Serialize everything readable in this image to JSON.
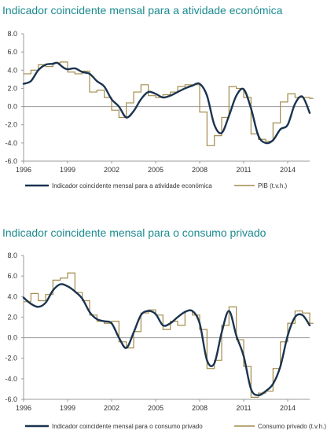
{
  "colors": {
    "title": "#1b8a8f",
    "indicator": "#1a3350",
    "reference": "#a38c4c",
    "axis": "#999999"
  },
  "chart_data": [
    {
      "type": "line",
      "title": "Indicador coincidente mensal para a atividade económica",
      "xlabel": "",
      "ylabel": "",
      "xlim": [
        1996,
        2015.5
      ],
      "ylim": [
        -6.0,
        8.0
      ],
      "yticks": [
        "8.0",
        "6.0",
        "4.0",
        "2.0",
        "0.0",
        "-2.0",
        "-4.0",
        "-6.0"
      ],
      "xticks": [
        "1996",
        "1999",
        "2002",
        "2005",
        "2008",
        "2011",
        "2014"
      ],
      "legend_position": "bottom",
      "series": [
        {
          "name": "Indicador coincidente mensal para a atividade económica",
          "style": "smooth",
          "x": [
            1996.0,
            1996.5,
            1997.0,
            1997.5,
            1998.0,
            1998.3,
            1998.7,
            1999.0,
            1999.5,
            2000.0,
            2000.5,
            2001.0,
            2001.5,
            2002.0,
            2002.5,
            2003.0,
            2003.5,
            2004.0,
            2004.5,
            2005.0,
            2005.5,
            2006.0,
            2006.5,
            2007.0,
            2007.5,
            2008.0,
            2008.5,
            2009.0,
            2009.5,
            2010.0,
            2010.5,
            2011.0,
            2011.5,
            2012.0,
            2012.5,
            2013.0,
            2013.5,
            2014.0,
            2014.5,
            2015.0,
            2015.5
          ],
          "y": [
            2.5,
            2.8,
            4.0,
            4.6,
            4.7,
            4.8,
            4.3,
            4.1,
            4.2,
            3.8,
            3.6,
            2.8,
            2.2,
            0.8,
            0.0,
            -1.2,
            -0.5,
            0.8,
            1.6,
            1.4,
            1.0,
            1.2,
            1.6,
            2.0,
            2.3,
            2.5,
            1.2,
            -2.0,
            -2.9,
            -1.0,
            1.2,
            1.9,
            -0.2,
            -3.2,
            -4.0,
            -3.7,
            -2.5,
            -2.0,
            0.3,
            1.1,
            -0.7
          ]
        },
        {
          "name": "PIB (t.v.h.)",
          "style": "step",
          "x": [
            1996.0,
            1996.5,
            1997.0,
            1997.5,
            1998.0,
            1998.5,
            1999.0,
            1999.5,
            2000.0,
            2000.5,
            2001.0,
            2001.5,
            2002.0,
            2002.5,
            2003.0,
            2003.5,
            2004.0,
            2004.5,
            2005.0,
            2005.5,
            2006.0,
            2006.5,
            2007.0,
            2007.5,
            2008.0,
            2008.5,
            2009.0,
            2009.5,
            2010.0,
            2010.5,
            2011.0,
            2011.5,
            2012.0,
            2012.5,
            2013.0,
            2013.5,
            2014.0,
            2014.5,
            2015.0,
            2015.5
          ],
          "y": [
            3.6,
            4.0,
            4.6,
            4.4,
            4.8,
            4.9,
            3.8,
            3.6,
            3.9,
            1.6,
            1.8,
            1.0,
            -0.4,
            -1.2,
            0.4,
            1.6,
            2.4,
            1.2,
            1.0,
            1.3,
            1.6,
            2.2,
            2.4,
            2.4,
            -0.6,
            -4.3,
            -3.2,
            -1.2,
            2.2,
            2.0,
            1.0,
            -3.0,
            -3.6,
            -3.8,
            -1.8,
            0.5,
            1.4,
            1.0,
            1.0,
            0.9
          ]
        }
      ]
    },
    {
      "type": "line",
      "title": "Indicador coincidente mensal para o consumo privado",
      "xlabel": "",
      "ylabel": "",
      "xlim": [
        1996,
        2015.5
      ],
      "ylim": [
        -6.0,
        8.0
      ],
      "yticks": [
        "8.0",
        "6.0",
        "4.0",
        "2.0",
        "0.0",
        "-2.0",
        "-4.0",
        "-6.0"
      ],
      "xticks": [
        "1996",
        "1999",
        "2002",
        "2005",
        "2008",
        "2011",
        "2014"
      ],
      "legend_position": "bottom",
      "series": [
        {
          "name": "Indicador coincidente mensal para o consumo privado",
          "style": "smooth",
          "x": [
            1996.0,
            1996.5,
            1997.0,
            1997.5,
            1998.0,
            1998.5,
            1999.0,
            1999.5,
            2000.0,
            2000.5,
            2001.0,
            2001.5,
            2002.0,
            2002.5,
            2003.0,
            2003.5,
            2004.0,
            2004.5,
            2005.0,
            2005.5,
            2006.0,
            2006.5,
            2007.0,
            2007.5,
            2008.0,
            2008.5,
            2009.0,
            2009.5,
            2010.0,
            2010.5,
            2011.0,
            2011.5,
            2012.0,
            2012.5,
            2013.0,
            2013.5,
            2014.0,
            2014.5,
            2015.0,
            2015.5
          ],
          "y": [
            3.9,
            3.3,
            3.0,
            3.4,
            4.6,
            5.2,
            5.0,
            4.5,
            3.8,
            2.5,
            1.8,
            1.6,
            1.4,
            0.0,
            -1.0,
            0.5,
            2.2,
            2.6,
            2.3,
            1.2,
            1.4,
            2.0,
            2.5,
            2.6,
            1.4,
            -2.2,
            -2.5,
            0.5,
            2.6,
            0.2,
            -1.8,
            -5.0,
            -5.6,
            -5.2,
            -4.5,
            -2.8,
            0.2,
            2.0,
            2.2,
            1.2
          ]
        },
        {
          "name": "Consumo privado (t.v.h.)",
          "style": "step",
          "x": [
            1996.0,
            1996.5,
            1997.0,
            1997.5,
            1998.0,
            1998.5,
            1999.0,
            1999.5,
            2000.0,
            2000.5,
            2001.0,
            2001.5,
            2002.0,
            2002.5,
            2003.0,
            2003.5,
            2004.0,
            2004.5,
            2005.0,
            2005.5,
            2006.0,
            2006.5,
            2007.0,
            2007.5,
            2008.0,
            2008.5,
            2009.0,
            2009.5,
            2010.0,
            2010.5,
            2011.0,
            2011.5,
            2012.0,
            2012.5,
            2013.0,
            2013.5,
            2014.0,
            2014.5,
            2015.0,
            2015.5
          ],
          "y": [
            3.5,
            4.3,
            3.6,
            4.2,
            5.6,
            5.8,
            6.3,
            4.4,
            3.6,
            2.2,
            1.6,
            1.4,
            1.6,
            -0.4,
            -1.0,
            0.6,
            2.4,
            2.7,
            2.2,
            0.8,
            1.6,
            1.2,
            2.6,
            2.2,
            0.8,
            -3.0,
            -2.2,
            1.2,
            3.0,
            -0.2,
            -2.8,
            -5.8,
            -5.4,
            -5.2,
            -3.0,
            -0.4,
            1.4,
            2.6,
            2.4,
            1.4
          ]
        }
      ]
    }
  ]
}
